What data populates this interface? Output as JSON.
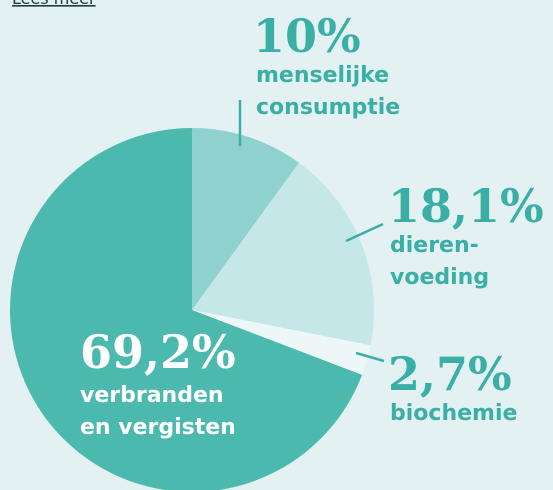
{
  "link": "Lees meer",
  "chart_data": {
    "type": "pie",
    "categories": [
      [
        "menselijke",
        "consumptie"
      ],
      [
        "dieren-",
        "voeding"
      ],
      [
        "biochemie"
      ],
      [
        "verbranden",
        "en vergisten"
      ]
    ],
    "values": [
      10,
      18.1,
      2.7,
      69.2
    ],
    "value_labels": [
      "10%",
      "18,1%",
      "2,7%",
      "69,2%"
    ],
    "colors": [
      "#8fd1cf",
      "#c6e7e8",
      "#edf7f7",
      "#4bb9ad"
    ]
  }
}
